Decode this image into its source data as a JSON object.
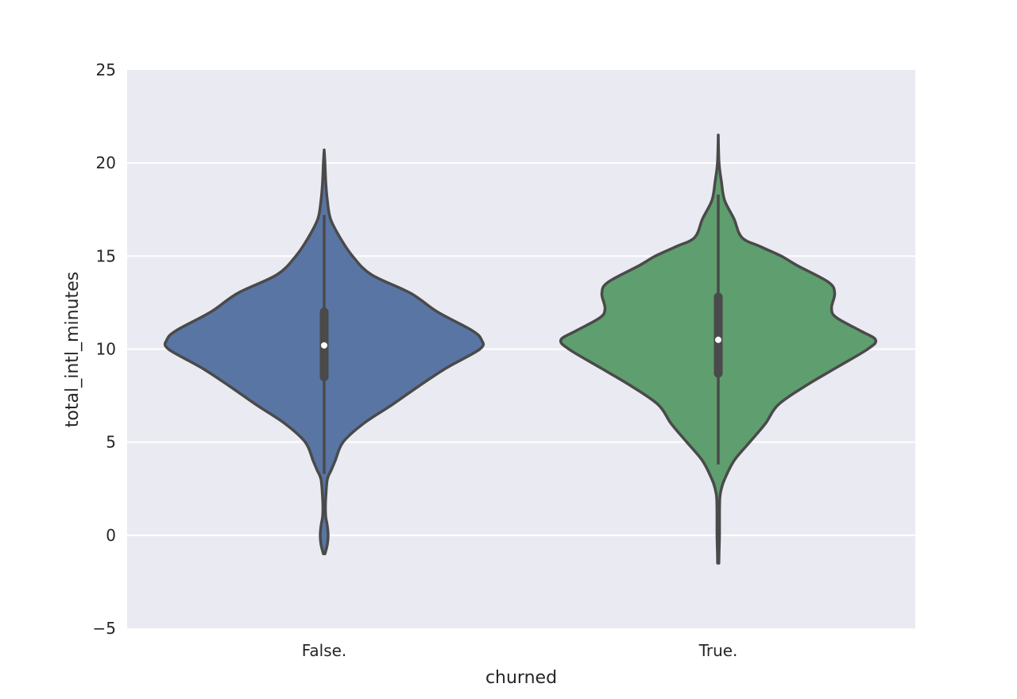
{
  "chart_data": {
    "type": "violin",
    "title": "",
    "xlabel": "churned",
    "ylabel": "total_intl_minutes",
    "ylim": [
      -5,
      25
    ],
    "yticks": [
      -5,
      0,
      5,
      10,
      15,
      20,
      25
    ],
    "ytick_labels": [
      "−5",
      "0",
      "5",
      "10",
      "15",
      "20",
      "25"
    ],
    "grid": true,
    "background_color": "#eaeaf2",
    "grid_color": "#ffffff",
    "outline_color": "#4a4a4a",
    "categories": [
      "False.",
      "True."
    ],
    "violins": [
      {
        "category": "False.",
        "color": "#5975a4",
        "median": 10.2,
        "q1": 8.5,
        "q3": 12.0,
        "whisker_low": 3.3,
        "whisker_high": 17.2,
        "density": [
          [
            -1.0,
            0.005
          ],
          [
            -0.5,
            0.02
          ],
          [
            0.0,
            0.025
          ],
          [
            0.5,
            0.02
          ],
          [
            1.0,
            0.01
          ],
          [
            1.5,
            0.008
          ],
          [
            2.0,
            0.01
          ],
          [
            3.0,
            0.02
          ],
          [
            3.5,
            0.045
          ],
          [
            4.0,
            0.07
          ],
          [
            5.0,
            0.12
          ],
          [
            6.0,
            0.25
          ],
          [
            7.0,
            0.43
          ],
          [
            8.0,
            0.6
          ],
          [
            9.0,
            0.78
          ],
          [
            10.0,
            0.99
          ],
          [
            10.5,
            1.0
          ],
          [
            11.0,
            0.94
          ],
          [
            12.0,
            0.72
          ],
          [
            13.0,
            0.55
          ],
          [
            14.0,
            0.3
          ],
          [
            15.0,
            0.18
          ],
          [
            16.0,
            0.1
          ],
          [
            17.0,
            0.04
          ],
          [
            18.0,
            0.02
          ],
          [
            19.0,
            0.01
          ],
          [
            20.0,
            0.005
          ],
          [
            20.7,
            0.0
          ]
        ]
      },
      {
        "category": "True.",
        "color": "#5f9e6e",
        "median": 10.5,
        "q1": 8.7,
        "q3": 12.8,
        "whisker_low": 3.8,
        "whisker_high": 18.3,
        "density": [
          [
            -1.5,
            0.004
          ],
          [
            -1.0,
            0.005
          ],
          [
            0.0,
            0.008
          ],
          [
            1.0,
            0.008
          ],
          [
            2.0,
            0.01
          ],
          [
            2.5,
            0.02
          ],
          [
            3.0,
            0.04
          ],
          [
            4.0,
            0.1
          ],
          [
            5.0,
            0.2
          ],
          [
            6.0,
            0.3
          ],
          [
            7.0,
            0.38
          ],
          [
            8.0,
            0.55
          ],
          [
            9.0,
            0.75
          ],
          [
            10.0,
            0.95
          ],
          [
            10.5,
            1.0
          ],
          [
            11.0,
            0.9
          ],
          [
            11.7,
            0.75
          ],
          [
            12.2,
            0.72
          ],
          [
            13.0,
            0.74
          ],
          [
            13.6,
            0.7
          ],
          [
            14.5,
            0.5
          ],
          [
            15.0,
            0.4
          ],
          [
            15.5,
            0.27
          ],
          [
            16.0,
            0.15
          ],
          [
            17.0,
            0.1
          ],
          [
            18.0,
            0.04
          ],
          [
            19.0,
            0.02
          ],
          [
            20.0,
            0.005
          ],
          [
            21.5,
            0.0
          ]
        ]
      }
    ]
  }
}
